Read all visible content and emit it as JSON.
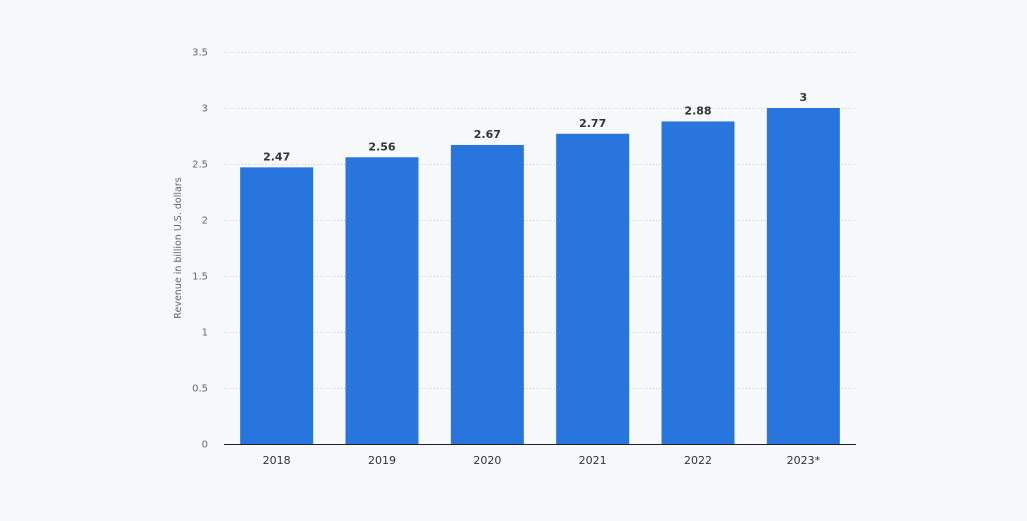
{
  "chart_data": {
    "type": "bar",
    "categories": [
      "2018",
      "2019",
      "2020",
      "2021",
      "2022",
      "2023*"
    ],
    "values": [
      2.47,
      2.56,
      2.67,
      2.77,
      2.88,
      3
    ],
    "data_labels": [
      "2.47",
      "2.56",
      "2.67",
      "2.77",
      "2.88",
      "3"
    ],
    "ylabel": "Revenue in billion U.S. dollars",
    "xlabel": "",
    "ylim": [
      0,
      3.5
    ],
    "yticks": [
      0,
      0.5,
      1,
      1.5,
      2,
      2.5,
      3,
      3.5
    ],
    "ytick_labels": [
      "0",
      "0.5",
      "1",
      "1.5",
      "2",
      "2.5",
      "3",
      "3.5"
    ],
    "grid": true,
    "legend": "none",
    "bar_color": "#2876dd",
    "background_color": "#f6f8fa"
  }
}
